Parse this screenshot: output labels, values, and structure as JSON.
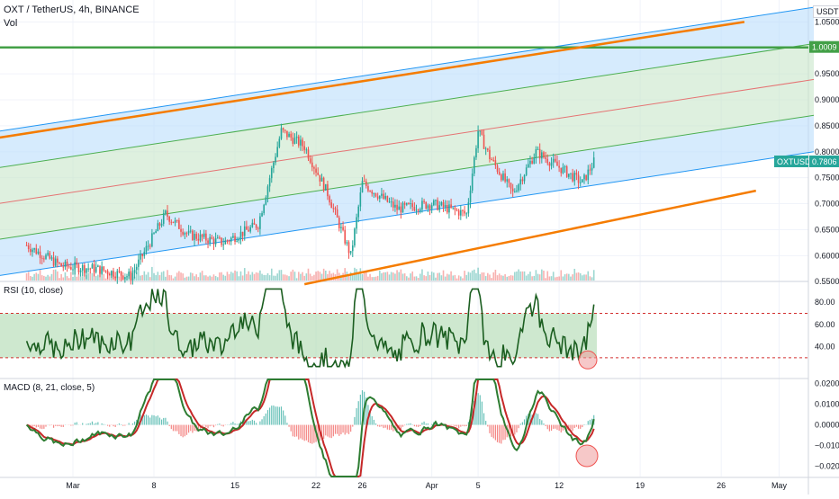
{
  "header": {
    "symbol_line": "OXT / TetherUS, 4h, BINANCE",
    "volume_label": "Vol",
    "currency": "USDT"
  },
  "colors": {
    "bull": "#26a69a",
    "bear": "#ef5350",
    "channel_outer": "#2196f3",
    "channel_fill": "#bbdefb",
    "channel_inner_fill": "#c8e6c9",
    "channel_mid": "#e57373",
    "channel_inner": "#4caf50",
    "trendline": "#f57c00",
    "resistance": "#43a047",
    "rsi_line": "#1b5e20",
    "rsi_band": "#a5d6a7",
    "rsi_band_edge": "#d32f2f",
    "macd_line": "#2e7d32",
    "signal_line": "#c62828",
    "highlight": "#ef9a9a",
    "grid": "#f0f3fa",
    "axis_text": "#131722"
  },
  "chart_data": [
    {
      "type": "candlestick",
      "title": "OXT / TetherUS, 4h, BINANCE",
      "x_ticks": [
        "Mar",
        "8",
        "15",
        "22",
        "26",
        "Apr",
        "5",
        "12",
        "19",
        "26",
        "May"
      ],
      "y_ticks": [
        0.55,
        0.6,
        0.65,
        0.7,
        0.75,
        0.8,
        0.85,
        0.9,
        0.95,
        1.0,
        1.05
      ],
      "ylim": [
        0.54,
        1.08
      ],
      "price_labels": [
        {
          "label": "1.0009",
          "value": 1.0009,
          "color": "#43a047"
        },
        {
          "label": "OXTUSDT",
          "value": 0.7806,
          "color": "#26a69a"
        },
        {
          "label": "0.7806",
          "value": 0.7806,
          "color": "#26a69a"
        }
      ],
      "path_close": [
        {
          "date": "Feb 25",
          "value": 0.62
        },
        {
          "date": "Feb 28",
          "value": 0.58
        },
        {
          "date": "Mar 3",
          "value": 0.575
        },
        {
          "date": "Mar 6",
          "value": 0.56
        },
        {
          "date": "Mar 9",
          "value": 0.68
        },
        {
          "date": "Mar 11",
          "value": 0.64
        },
        {
          "date": "Mar 14",
          "value": 0.625
        },
        {
          "date": "Mar 17",
          "value": 0.66
        },
        {
          "date": "Mar 19",
          "value": 0.84
        },
        {
          "date": "Mar 21",
          "value": 0.81
        },
        {
          "date": "Mar 23",
          "value": 0.72
        },
        {
          "date": "Mar 25",
          "value": 0.6
        },
        {
          "date": "Mar 26",
          "value": 0.74
        },
        {
          "date": "Mar 29",
          "value": 0.69
        },
        {
          "date": "Apr 1",
          "value": 0.7
        },
        {
          "date": "Apr 4",
          "value": 0.68
        },
        {
          "date": "Apr 5",
          "value": 0.84
        },
        {
          "date": "Apr 6",
          "value": 0.79
        },
        {
          "date": "Apr 8",
          "value": 0.72
        },
        {
          "date": "Apr 10",
          "value": 0.8
        },
        {
          "date": "Apr 12",
          "value": 0.77
        },
        {
          "date": "Apr 14",
          "value": 0.74
        },
        {
          "date": "Apr 15",
          "value": 0.7806
        }
      ],
      "lines": {
        "resistance": 1.0009,
        "upper_trendline": [
          {
            "date": "Feb 22",
            "value": 0.825
          },
          {
            "date": "Apr 28",
            "value": 1.05
          }
        ],
        "lower_trendline": [
          {
            "date": "Mar 21",
            "value": 0.545
          },
          {
            "date": "Apr 29",
            "value": 0.725
          }
        ]
      }
    },
    {
      "type": "line",
      "title": "RSI (10, close)",
      "y_ticks": [
        40,
        60,
        80
      ],
      "ylim": [
        12,
        98
      ],
      "band": [
        30,
        70
      ]
    },
    {
      "type": "line",
      "title": "MACD (8, 21, close, 5)",
      "y_ticks": [
        0.02,
        0.01,
        0,
        -0.01,
        -0.02
      ],
      "y_tick_labels": [
        "0.0200",
        "0.0100",
        "0.0000",
        "−0.0100",
        "−0.0200"
      ],
      "ylim": [
        -0.025,
        0.022
      ],
      "series": [
        {
          "values": []
        },
        {
          "values": []
        }
      ]
    }
  ]
}
